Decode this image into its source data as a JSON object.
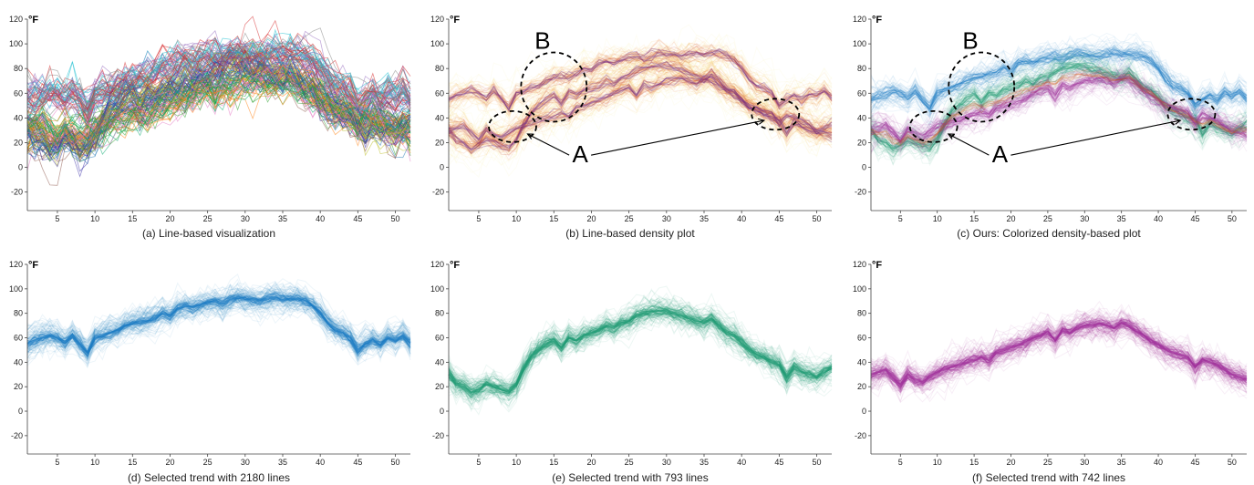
{
  "chart_data": [
    {
      "id": "a",
      "type": "line",
      "style": "multicolor",
      "caption": "(a) Line-based visualization",
      "unit_label": "°F",
      "xlim": [
        1,
        52
      ],
      "ylim": [
        -35,
        120
      ],
      "xticks": [
        5,
        10,
        15,
        20,
        25,
        30,
        35,
        40,
        45,
        50
      ],
      "yticks": [
        -20,
        0,
        20,
        40,
        60,
        80,
        100,
        120
      ],
      "annotations": []
    },
    {
      "id": "b",
      "type": "line",
      "style": "density",
      "caption": "(b) Line-based density plot",
      "unit_label": "°F",
      "xlim": [
        1,
        52
      ],
      "ylim": [
        -35,
        120
      ],
      "xticks": [
        5,
        10,
        15,
        20,
        25,
        30,
        35,
        40,
        45,
        50
      ],
      "yticks": [
        -20,
        0,
        20,
        40,
        60,
        80,
        100,
        120
      ],
      "annotations": [
        {
          "label": "A",
          "kind": "arrow-label",
          "text_at": [
            18.5,
            4
          ],
          "targets": [
            [
              11.5,
              27
            ],
            [
              43,
              38
            ]
          ]
        },
        {
          "label": "B",
          "kind": "circle-label",
          "text_at": [
            13.5,
            96
          ]
        }
      ]
    },
    {
      "id": "c",
      "type": "line",
      "style": "colorized",
      "caption": "(c) Ours: Colorized density-based plot",
      "unit_label": "°F",
      "xlim": [
        1,
        52
      ],
      "ylim": [
        -35,
        120
      ],
      "xticks": [
        5,
        10,
        15,
        20,
        25,
        30,
        35,
        40,
        45,
        50
      ],
      "yticks": [
        -20,
        0,
        20,
        40,
        60,
        80,
        100,
        120
      ],
      "annotations": [
        {
          "label": "A",
          "kind": "arrow-label",
          "text_at": [
            18.5,
            4
          ],
          "targets": [
            [
              11.5,
              27
            ],
            [
              43,
              38
            ]
          ]
        },
        {
          "label": "B",
          "kind": "circle-label",
          "text_at": [
            14.5,
            96
          ]
        }
      ]
    },
    {
      "id": "d",
      "type": "line",
      "style": "single",
      "color": "#1b7cc4",
      "caption": "(d) Selected trend with 2180 lines",
      "unit_label": "°F",
      "xlim": [
        1,
        52
      ],
      "ylim": [
        -35,
        120
      ],
      "xticks": [
        5,
        10,
        15,
        20,
        25,
        30,
        35,
        40,
        45,
        50
      ],
      "yticks": [
        -20,
        0,
        20,
        40,
        60,
        80,
        100,
        120
      ],
      "series": [
        {
          "values": [
            55,
            58,
            60,
            62,
            60,
            56,
            62,
            55,
            48,
            60,
            62,
            64,
            66,
            70,
            72,
            73,
            74,
            76,
            80,
            78,
            84,
            86,
            85,
            87,
            89,
            90,
            88,
            91,
            93,
            92,
            91,
            90,
            92,
            93,
            91,
            92,
            92,
            90,
            86,
            80,
            72,
            66,
            64,
            60,
            50,
            55,
            58,
            54,
            60,
            58,
            62,
            56
          ]
        }
      ],
      "annotations": []
    },
    {
      "id": "e",
      "type": "line",
      "style": "single",
      "color": "#1f9a74",
      "caption": "(e) Selected trend with 793 lines",
      "unit_label": "°F",
      "xlim": [
        1,
        52
      ],
      "ylim": [
        -35,
        120
      ],
      "xticks": [
        5,
        10,
        15,
        20,
        25,
        30,
        35,
        40,
        45,
        50
      ],
      "yticks": [
        -20,
        0,
        20,
        40,
        60,
        80,
        100,
        120
      ],
      "series": [
        {
          "values": [
            30,
            22,
            20,
            15,
            18,
            22,
            20,
            18,
            16,
            22,
            35,
            45,
            50,
            55,
            58,
            52,
            60,
            58,
            62,
            64,
            66,
            70,
            68,
            72,
            74,
            78,
            80,
            82,
            82,
            82,
            80,
            78,
            76,
            74,
            72,
            76,
            70,
            64,
            62,
            56,
            50,
            46,
            44,
            40,
            38,
            28,
            36,
            32,
            30,
            28,
            32,
            35
          ]
        }
      ],
      "annotations": []
    },
    {
      "id": "f",
      "type": "line",
      "style": "single",
      "color": "#a0309a",
      "caption": "(f) Selected trend with 742 lines",
      "unit_label": "°F",
      "xlim": [
        1,
        52
      ],
      "ylim": [
        -35,
        120
      ],
      "xticks": [
        5,
        10,
        15,
        20,
        25,
        30,
        35,
        40,
        45,
        50
      ],
      "yticks": [
        -20,
        0,
        20,
        40,
        60,
        80,
        100,
        120
      ],
      "series": [
        {
          "values": [
            30,
            32,
            34,
            28,
            22,
            30,
            26,
            24,
            28,
            32,
            34,
            36,
            38,
            40,
            42,
            44,
            42,
            48,
            50,
            52,
            54,
            56,
            60,
            62,
            64,
            58,
            66,
            64,
            68,
            70,
            70,
            72,
            70,
            68,
            72,
            70,
            66,
            62,
            58,
            54,
            50,
            48,
            46,
            44,
            36,
            42,
            40,
            38,
            34,
            30,
            28,
            26
          ]
        }
      ],
      "annotations": []
    }
  ]
}
